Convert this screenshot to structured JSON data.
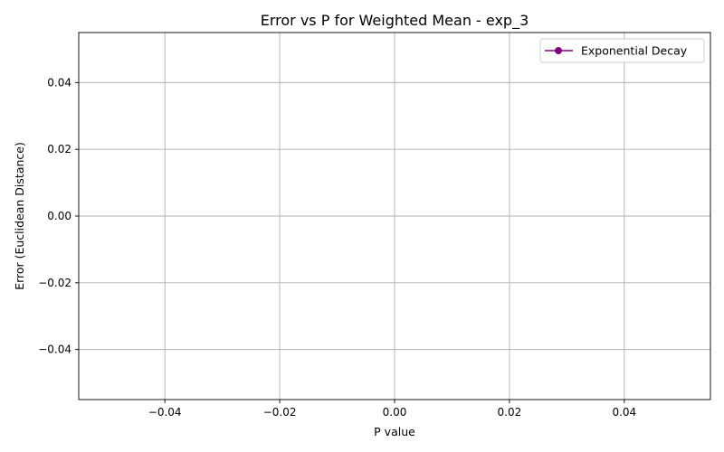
{
  "chart_data": {
    "type": "line",
    "title": "Error vs P for Weighted Mean - exp_3",
    "xlabel": "P value",
    "ylabel": "Error (Euclidean Distance)",
    "xlim": [
      -0.055,
      0.055
    ],
    "ylim": [
      -0.055,
      0.055
    ],
    "x_ticks": [
      -0.04,
      -0.02,
      0.0,
      0.02,
      0.04
    ],
    "x_tick_labels": [
      "−0.04",
      "−0.02",
      "0.00",
      "0.02",
      "0.04"
    ],
    "y_ticks": [
      -0.04,
      -0.02,
      0.0,
      0.02,
      0.04
    ],
    "y_tick_labels": [
      "−0.04",
      "−0.02",
      "0.00",
      "0.02",
      "0.04"
    ],
    "grid": true,
    "legend_position": "top-right",
    "series": [
      {
        "name": "Exponential Decay",
        "color": "#800080",
        "marker": "circle",
        "x": [],
        "y": []
      }
    ]
  }
}
